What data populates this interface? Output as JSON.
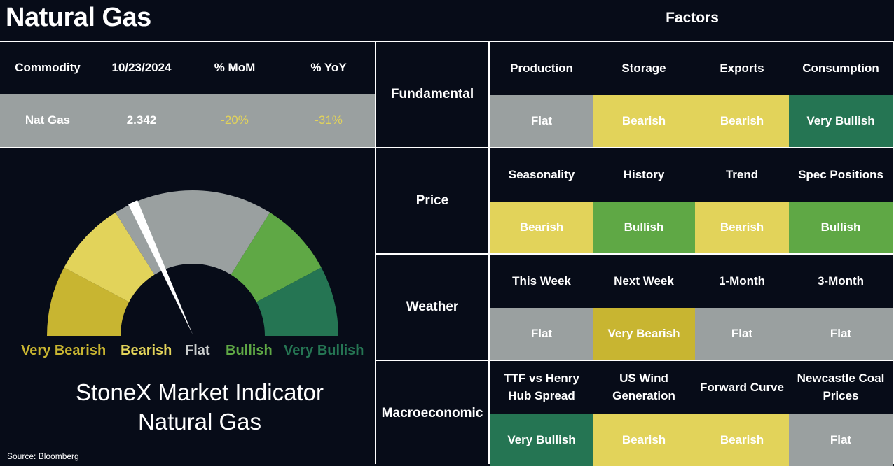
{
  "title": "Natural Gas",
  "factors_title": "Factors",
  "colors": {
    "background": "#070c18",
    "flat": "#9aa0a0",
    "bearish": "#e2d35a",
    "very_bearish": "#c8b531",
    "bullish": "#5fa845",
    "very_bullish": "#257553",
    "negative_text": "#e2d35a"
  },
  "commodity_table": {
    "headers": [
      "Commodity",
      "10/23/2024",
      "% MoM",
      "% YoY"
    ],
    "row": [
      "Nat Gas",
      "2.342",
      "-20%",
      "-31%"
    ]
  },
  "gauge": {
    "labels": [
      "Very Bearish",
      "Bearish",
      "Flat",
      "Bullish",
      "Very Bullish"
    ],
    "title_line1": "StoneX Market Indicator",
    "title_line2": "Natural Gas"
  },
  "source": "Source: Bloomberg",
  "sections": [
    {
      "category": "Fundamental",
      "factors": [
        "Production",
        "Storage",
        "Exports",
        "Consumption"
      ],
      "ratings": [
        "Flat",
        "Bearish",
        "Bearish",
        "Very Bullish"
      ]
    },
    {
      "category": "Price",
      "factors": [
        "Seasonality",
        "History",
        "Trend",
        "Spec Positions"
      ],
      "ratings": [
        "Bearish",
        "Bullish",
        "Bearish",
        "Bullish"
      ]
    },
    {
      "category": "Weather",
      "factors": [
        "This Week",
        "Next Week",
        "1-Month",
        "3-Month"
      ],
      "ratings": [
        "Flat",
        "Very Bearish",
        "Flat",
        "Flat"
      ]
    },
    {
      "category": "Macroeconomic",
      "factors": [
        "TTF vs Henry Hub Spread",
        "US Wind Generation",
        "Forward Curve",
        "Newcastle Coal Prices"
      ],
      "ratings": [
        "Very Bullish",
        "Bearish",
        "Bearish",
        "Flat"
      ]
    }
  ]
}
